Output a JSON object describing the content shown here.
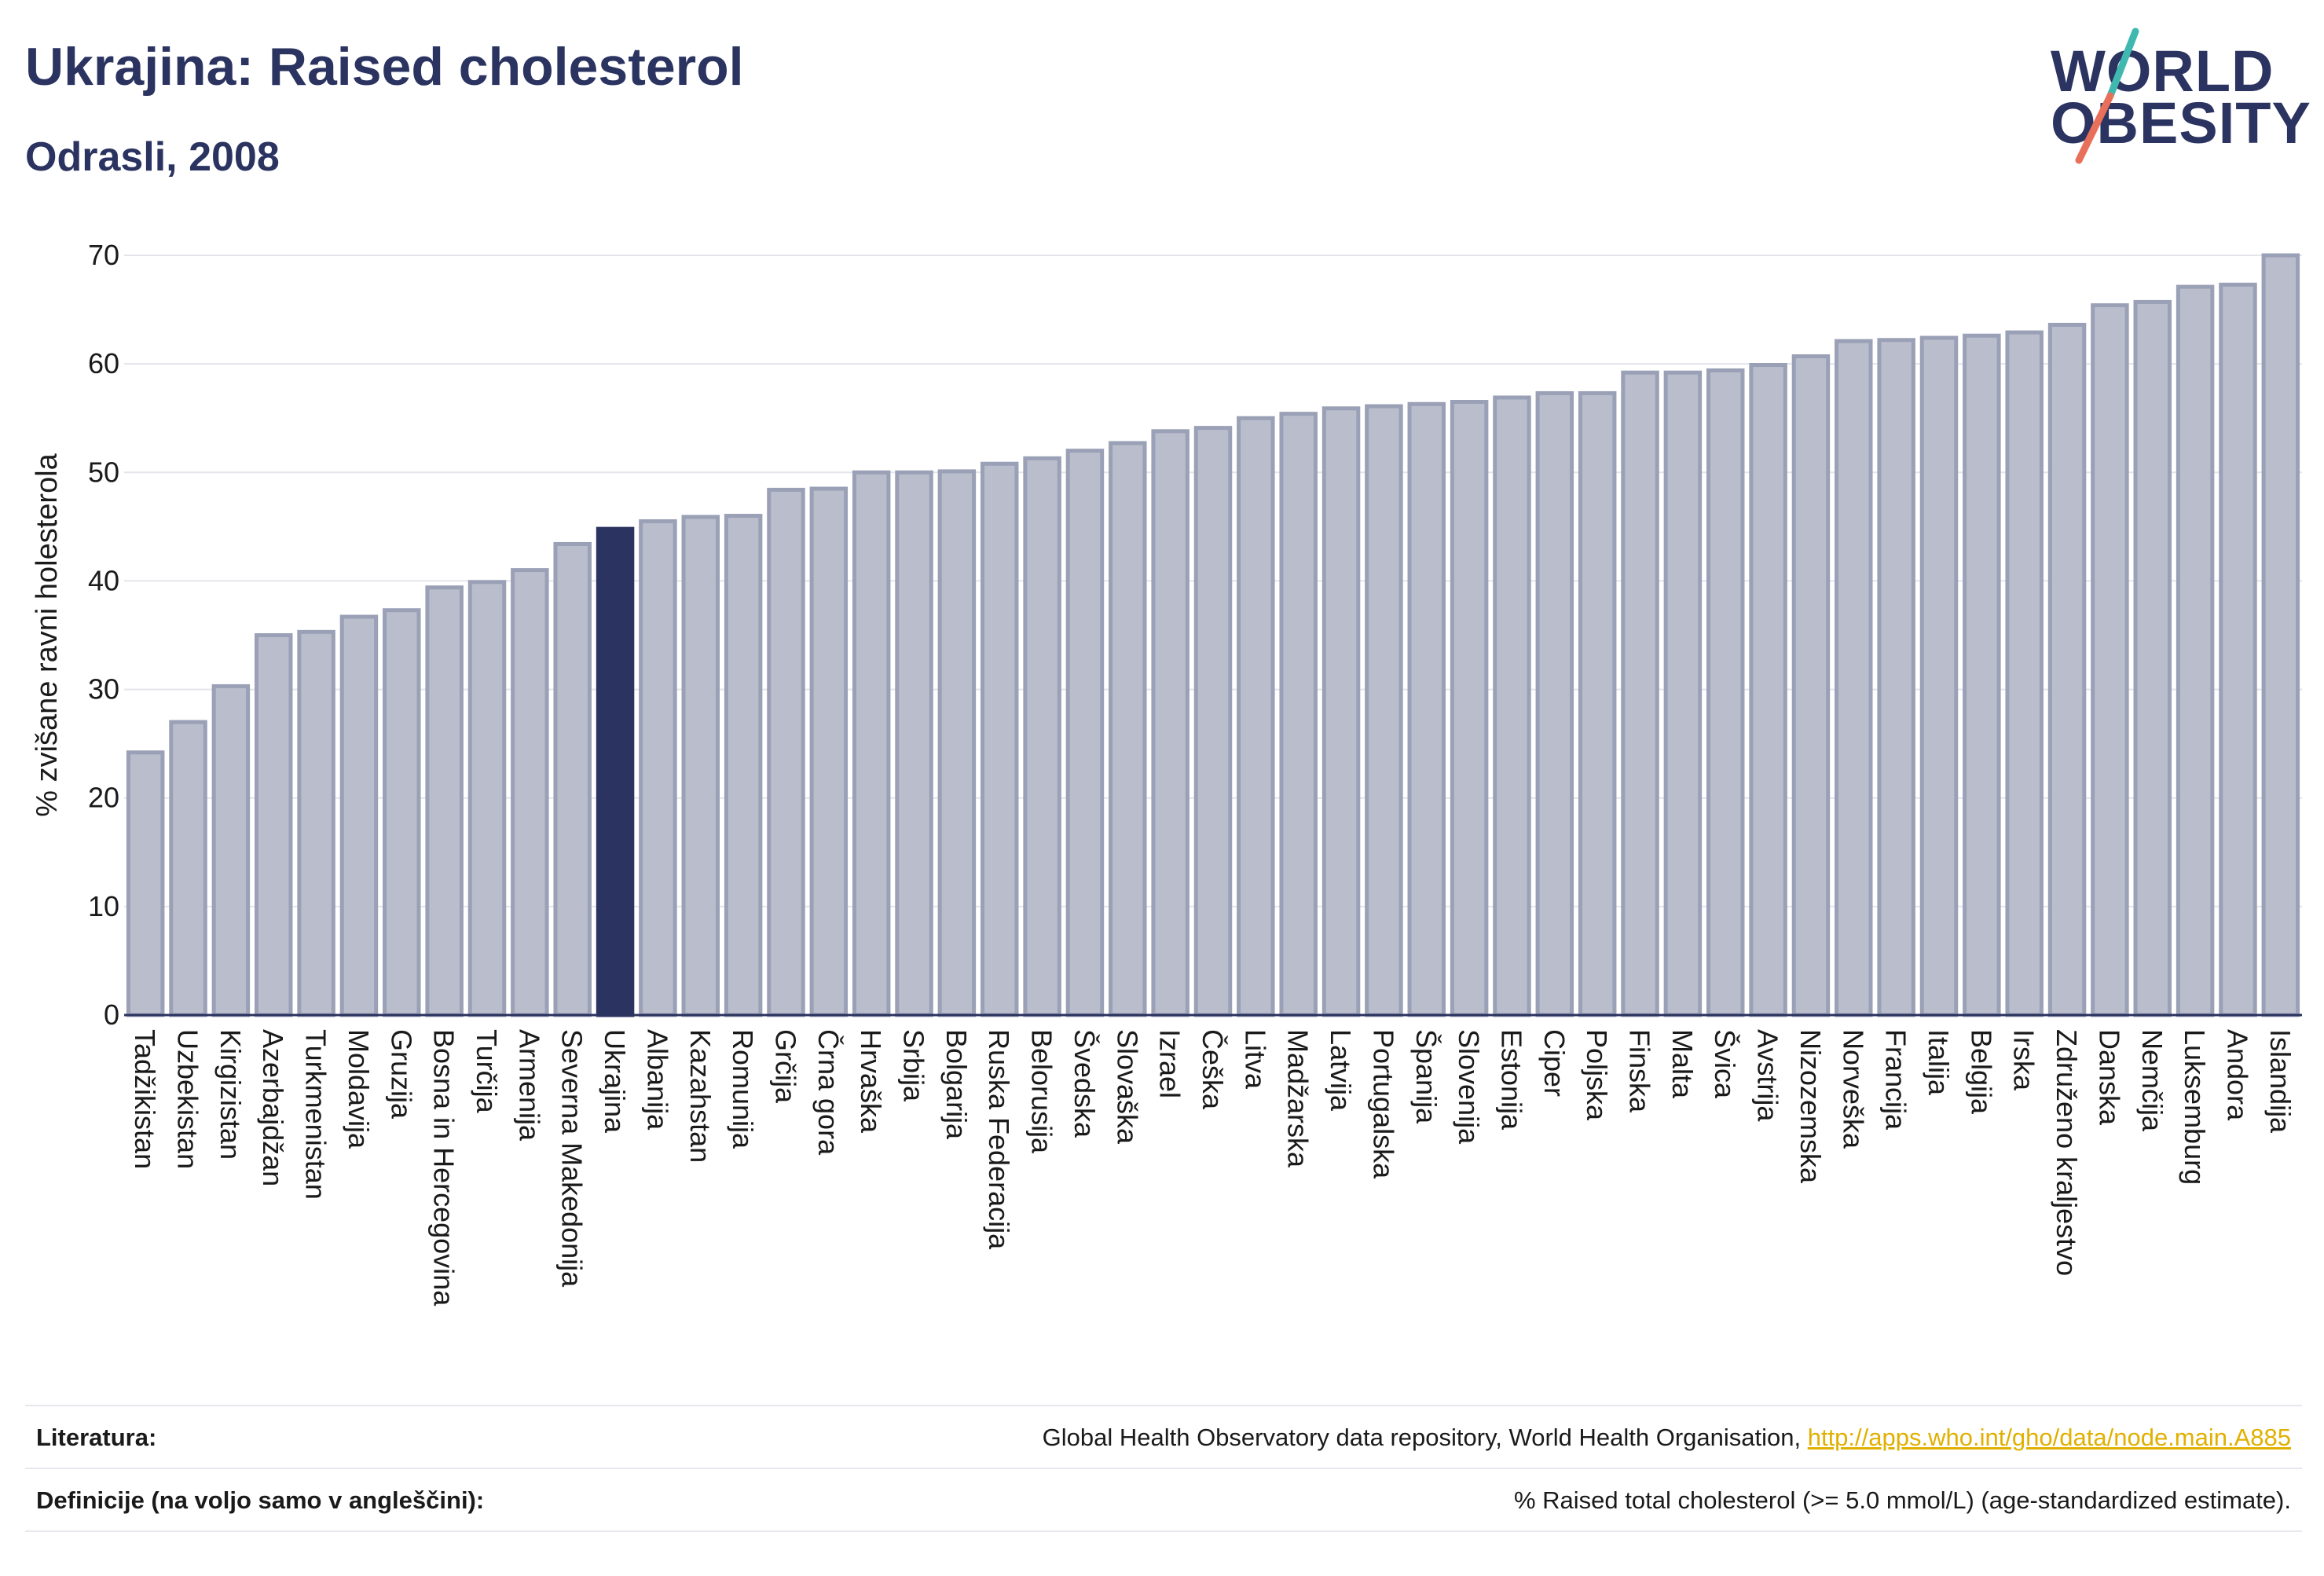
{
  "header": {
    "title": "Ukrajina: Raised cholesterol",
    "subtitle": "Odrasli, 2008"
  },
  "logo": {
    "line1": "WORLD",
    "line2": "OBESITY",
    "slash_colors": [
      "#3fb8b0",
      "#e8705a"
    ]
  },
  "colors": {
    "bar": "#b9bdcc",
    "bar_edge": "#9aa0b5",
    "highlight": "#2b3360",
    "axis": "#2b3360",
    "grid": "#e3e5ea",
    "link": "#e0b000"
  },
  "chart_data": {
    "type": "bar",
    "title": "Ukrajina: Raised cholesterol",
    "subtitle": "Odrasli, 2008",
    "xlabel": "",
    "ylabel": "% zvišane ravni holesterola",
    "ylim": [
      0,
      70
    ],
    "yticks": [
      0,
      10,
      20,
      30,
      40,
      50,
      60,
      70
    ],
    "grid": true,
    "highlight": "Ukrajina",
    "categories": [
      "Tadžikistan",
      "Uzbekistan",
      "Kirgizistan",
      "Azerbajdžan",
      "Turkmenistan",
      "Moldavija",
      "Gruzija",
      "Bosna in Hercegovina",
      "Turčija",
      "Armenija",
      "Severna Makedonija",
      "Ukrajina",
      "Albanija",
      "Kazahstan",
      "Romunija",
      "Grčija",
      "Črna gora",
      "Hrvaška",
      "Srbija",
      "Bolgarija",
      "Ruska Federacija",
      "Belorusija",
      "Švedska",
      "Slovaška",
      "Izrael",
      "Češka",
      "Litva",
      "Madžarska",
      "Latvija",
      "Portugalska",
      "Španija",
      "Slovenija",
      "Estonija",
      "Ciper",
      "Poljska",
      "Finska",
      "Malta",
      "Švica",
      "Avstrija",
      "Nizozemska",
      "Norveška",
      "Francija",
      "Italija",
      "Belgija",
      "Irska",
      "Združeno kraljestvo",
      "Danska",
      "Nemčija",
      "Luksemburg",
      "Andora",
      "Islandija"
    ],
    "values": [
      24.2,
      27.0,
      30.3,
      35.0,
      35.3,
      36.7,
      37.3,
      39.4,
      39.9,
      41.0,
      43.4,
      44.8,
      45.5,
      45.9,
      46.0,
      48.4,
      48.5,
      50.0,
      50.0,
      50.1,
      50.8,
      51.3,
      52.0,
      52.7,
      53.8,
      54.1,
      55.0,
      55.4,
      55.9,
      56.1,
      56.3,
      56.5,
      56.9,
      57.3,
      57.3,
      59.2,
      59.2,
      59.4,
      59.9,
      60.7,
      62.1,
      62.2,
      62.4,
      62.6,
      62.9,
      63.6,
      65.4,
      65.7,
      67.1,
      67.3,
      70.0
    ]
  },
  "footer": {
    "references_label": "Literatura:",
    "references_text": "Global Health Observatory data repository, World Health Organisation, ",
    "references_link": "http://apps.who.int/gho/data/node.main.A885",
    "definitions_label": "Definicije (na voljo samo v angleščini):",
    "definitions_text": "% Raised total cholesterol (>= 5.0 mmol/L) (age-standardized estimate)."
  }
}
